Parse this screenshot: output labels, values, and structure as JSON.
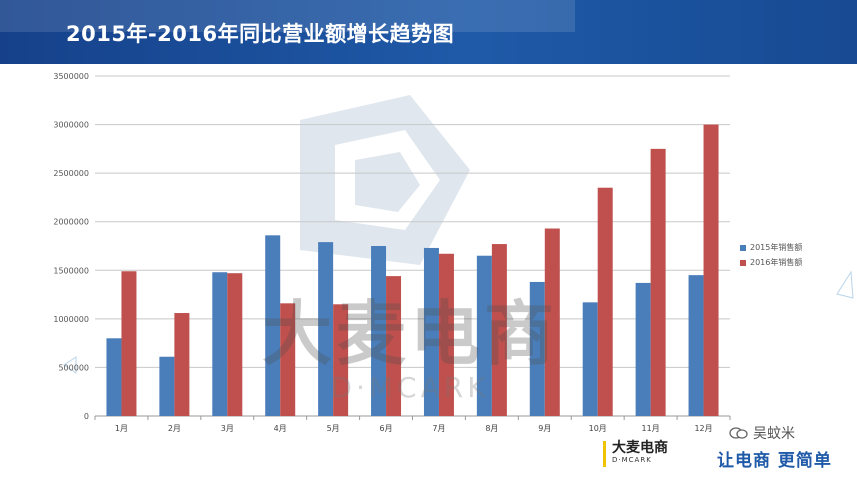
{
  "header": {
    "title": "2015年-2016年同比营业额增长趋势图"
  },
  "chart_data": {
    "type": "bar",
    "title": "2015年-2016年同比营业额增长趋势图",
    "categories": [
      "1月",
      "2月",
      "3月",
      "4月",
      "5月",
      "6月",
      "7月",
      "8月",
      "9月",
      "10月",
      "11月",
      "12月"
    ],
    "series": [
      {
        "name": "2015年销售额",
        "color": "#4a7ebb",
        "values": [
          800000,
          610000,
          1480000,
          1860000,
          1790000,
          1750000,
          1730000,
          1650000,
          1380000,
          1170000,
          1370000,
          1450000
        ]
      },
      {
        "name": "2016年销售额",
        "color": "#c0504d",
        "values": [
          1490000,
          1060000,
          1470000,
          1160000,
          1150000,
          1440000,
          1670000,
          1770000,
          1930000,
          2350000,
          2750000,
          3000000
        ]
      }
    ],
    "ylim": [
      0,
      3500000
    ],
    "yticks": [
      0,
      500000,
      1000000,
      1500000,
      2000000,
      2500000,
      3000000,
      3500000
    ],
    "grid": true,
    "legend_position": "right"
  },
  "watermark": {
    "text": "大麦电商",
    "subtext": "D·MCARK"
  },
  "footer": {
    "logo_text": "大麦电商",
    "logo_subtext": "D·MCARK",
    "slogan": "让电商 更简单",
    "wechat_account": "吴蚊米"
  }
}
